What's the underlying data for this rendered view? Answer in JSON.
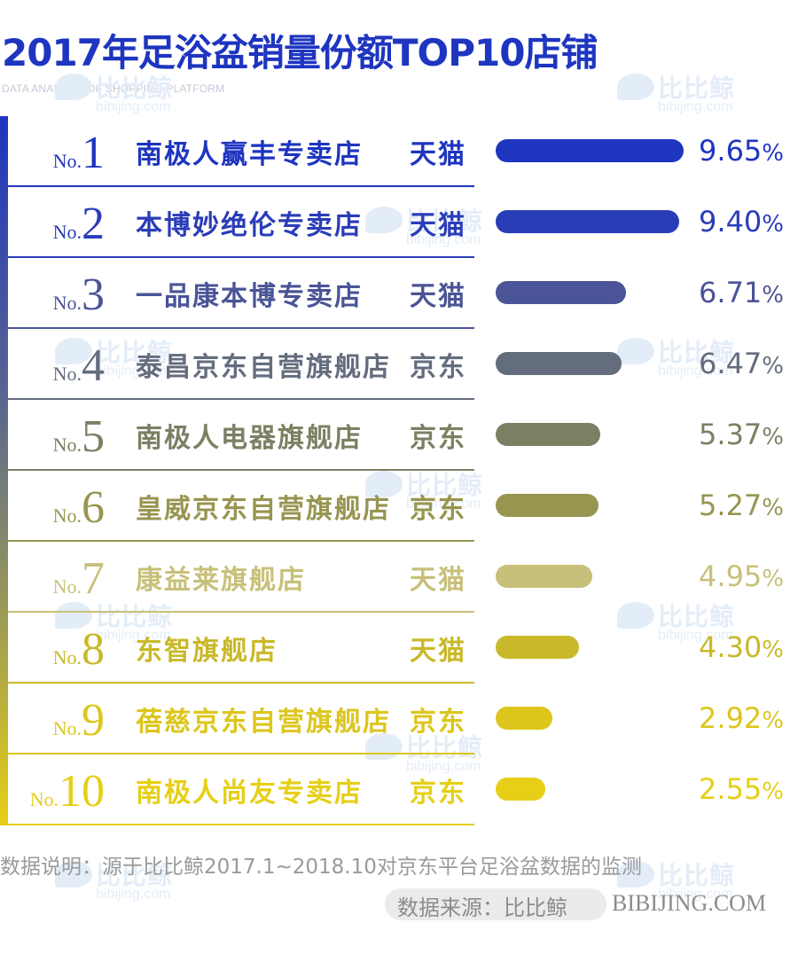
{
  "header": {
    "title": "2017年足浴盆销量份额TOP10店铺",
    "subtitle": "DATA ANALYSIS OF SHOPPING PLATFORM"
  },
  "watermark": {
    "text": "比比鲸",
    "url": "bibijing.com"
  },
  "rank_prefix": "No.",
  "percent_sign": "%",
  "chart_data": {
    "type": "bar",
    "orientation": "horizontal",
    "title": "2017年足浴盆销量份额TOP10店铺",
    "categories": [
      "南极人赢丰专卖店",
      "本博妙绝伦专卖店",
      "一品康本博专卖店",
      "泰昌京东自营旗舰店",
      "南极人电器旗舰店",
      "皇威京东自营旗舰店",
      "康益莱旗舰店",
      "东智旗舰店",
      "蓓慈京东自营旗舰店",
      "南极人尚友专卖店"
    ],
    "values": [
      9.65,
      9.4,
      6.71,
      6.47,
      5.37,
      5.27,
      4.95,
      4.3,
      2.92,
      2.55
    ],
    "xlim": [
      0,
      9.65
    ],
    "grid": false,
    "legend": "none",
    "rows": [
      {
        "rank": "1",
        "store": "南极人赢丰专卖店",
        "platform": "天猫",
        "value": 9.65,
        "value_label": "9.65",
        "color": "#1e35c0"
      },
      {
        "rank": "2",
        "store": "本博妙绝伦专卖店",
        "platform": "天猫",
        "value": 9.4,
        "value_label": "9.40",
        "color": "#2a3db8"
      },
      {
        "rank": "3",
        "store": "一品康本博专卖店",
        "platform": "天猫",
        "value": 6.71,
        "value_label": "6.71",
        "color": "#4a5496"
      },
      {
        "rank": "4",
        "store": "泰昌京东自营旗舰店",
        "platform": "京东",
        "value": 6.47,
        "value_label": "6.47",
        "color": "#646d7d"
      },
      {
        "rank": "5",
        "store": "南极人电器旗舰店",
        "platform": "京东",
        "value": 5.37,
        "value_label": "5.37",
        "color": "#7d7f63"
      },
      {
        "rank": "6",
        "store": "皇威京东自营旗舰店",
        "platform": "京东",
        "value": 5.27,
        "value_label": "5.27",
        "color": "#979550"
      },
      {
        "rank": "7",
        "store": "康益莱旗舰店",
        "platform": "天猫",
        "value": 4.95,
        "value_label": "4.95",
        "color": "#c8c07a"
      },
      {
        "rank": "8",
        "store": "东智旗舰店",
        "platform": "天猫",
        "value": 4.3,
        "value_label": "4.30",
        "color": "#c9b92a"
      },
      {
        "rank": "9",
        "store": "蓓慈京东自营旗舰店",
        "platform": "京东",
        "value": 2.92,
        "value_label": "2.92",
        "color": "#dcc61c"
      },
      {
        "rank": "10",
        "store": "南极人尚友专卖店",
        "platform": "京东",
        "value": 2.55,
        "value_label": "2.55",
        "color": "#e6cf16"
      }
    ]
  },
  "footer": {
    "note": "数据说明：源于比比鲸2017.1~2018.10对京东平台足浴盆数据的监测",
    "source_label": "数据来源：比比鲸",
    "source_site": "BIBIJING.COM"
  }
}
